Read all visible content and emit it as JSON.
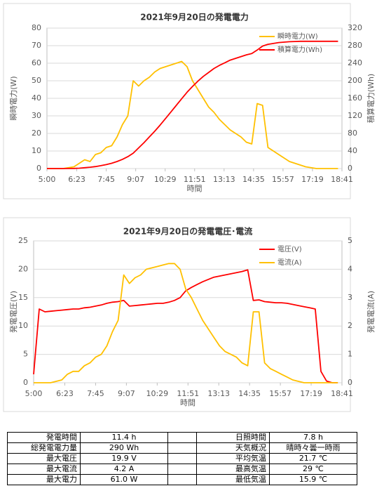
{
  "chart_data": [
    {
      "type": "line",
      "title": "2021年9月20日の発電電力",
      "xlabel": "時間",
      "ylabel": "瞬時電力(W)",
      "y2label": "積算電力(Wh)",
      "legend": "top-right",
      "grid": true,
      "x": [
        300,
        315,
        330,
        345,
        360,
        375,
        390,
        405,
        420,
        435,
        450,
        465,
        480,
        495,
        510,
        525,
        540,
        555,
        570,
        585,
        600,
        615,
        630,
        645,
        660,
        675,
        690,
        705,
        720,
        735,
        750,
        765,
        780,
        795,
        810,
        825,
        840,
        855,
        870,
        885,
        900,
        915,
        930,
        945,
        960,
        975,
        990,
        1005,
        1020,
        1035,
        1050,
        1065,
        1080,
        1095,
        1110
      ],
      "xlim": [
        300,
        1121
      ],
      "xticks": [
        {
          "value": 300,
          "label": "5:00"
        },
        {
          "value": 383,
          "label": "6:23"
        },
        {
          "value": 465,
          "label": "7:45"
        },
        {
          "value": 547,
          "label": "9:07"
        },
        {
          "value": 629,
          "label": "10:29"
        },
        {
          "value": 711,
          "label": "11:51"
        },
        {
          "value": 793,
          "label": "13:13"
        },
        {
          "value": 875,
          "label": "14:35"
        },
        {
          "value": 957,
          "label": "15:57"
        },
        {
          "value": 1039,
          "label": "17:19"
        },
        {
          "value": 1121,
          "label": "18:41"
        }
      ],
      "ylim": [
        0,
        80
      ],
      "yticks": [
        0,
        10,
        20,
        30,
        40,
        50,
        60,
        70,
        80
      ],
      "y2lim": [
        0,
        320
      ],
      "y2ticks": [
        0,
        40,
        80,
        120,
        160,
        200,
        240,
        280,
        320
      ],
      "series": [
        {
          "name": "瞬時電力(W)",
          "color": "#ffc000",
          "values": [
            0,
            0,
            0,
            0,
            0.5,
            1,
            3,
            5,
            4,
            8,
            9,
            12,
            13,
            18,
            25,
            30,
            50,
            47,
            50,
            52,
            55,
            57,
            58,
            59,
            60,
            61,
            58,
            50,
            45,
            40,
            35,
            32,
            28,
            25,
            22,
            20,
            18,
            15,
            14,
            37,
            36,
            12,
            10,
            8,
            6,
            4,
            3,
            2,
            1,
            0.5,
            0,
            0,
            0,
            0,
            0
          ]
        },
        {
          "name": "積算電力(Wh)",
          "color": "#ff0000",
          "axis": "y2",
          "values": [
            0,
            0,
            0,
            0,
            0.1,
            0.3,
            0.8,
            2,
            3,
            4.5,
            6.5,
            9,
            12,
            16,
            21,
            27,
            35,
            47,
            59,
            72,
            85,
            99,
            114,
            129,
            144,
            159,
            174,
            187,
            199,
            210,
            219,
            228,
            235,
            241,
            247,
            251,
            255,
            259,
            262,
            270,
            279,
            283,
            285,
            287,
            288,
            289,
            289.5,
            290,
            290,
            290,
            290,
            290,
            290,
            290,
            290
          ]
        }
      ]
    },
    {
      "type": "line",
      "title": "2021年9月20日の発電電圧･電流",
      "xlabel": "時間",
      "ylabel": "発電電圧(V)",
      "y2label": "発電電流(A)",
      "legend": "top-right",
      "grid": true,
      "x": [
        300,
        315,
        330,
        345,
        360,
        375,
        390,
        405,
        420,
        435,
        450,
        465,
        480,
        495,
        510,
        525,
        540,
        555,
        570,
        585,
        600,
        615,
        630,
        645,
        660,
        675,
        690,
        705,
        720,
        735,
        750,
        765,
        780,
        795,
        810,
        825,
        840,
        855,
        870,
        885,
        900,
        915,
        930,
        945,
        960,
        975,
        990,
        1005,
        1020,
        1035,
        1050,
        1065,
        1080,
        1095,
        1110
      ],
      "xlim": [
        300,
        1121
      ],
      "xticks": [
        {
          "value": 300,
          "label": "5:00"
        },
        {
          "value": 383,
          "label": "6:23"
        },
        {
          "value": 465,
          "label": "7:45"
        },
        {
          "value": 547,
          "label": "9:07"
        },
        {
          "value": 629,
          "label": "10:29"
        },
        {
          "value": 711,
          "label": "11:51"
        },
        {
          "value": 793,
          "label": "13:13"
        },
        {
          "value": 875,
          "label": "14:35"
        },
        {
          "value": 957,
          "label": "15:57"
        },
        {
          "value": 1039,
          "label": "17:19"
        },
        {
          "value": 1121,
          "label": "18:41"
        }
      ],
      "ylim": [
        0,
        25
      ],
      "yticks": [
        0,
        5,
        10,
        15,
        20,
        25
      ],
      "y2lim": [
        0,
        5
      ],
      "y2ticks": [
        0,
        1,
        2,
        3,
        4,
        5
      ],
      "series": [
        {
          "name": "電圧(V)",
          "color": "#ff0000",
          "values": [
            1.5,
            13,
            12.5,
            12.6,
            12.7,
            12.8,
            12.9,
            13,
            13,
            13.2,
            13.3,
            13.5,
            13.7,
            14,
            14.2,
            14.3,
            14.5,
            13.5,
            13.6,
            13.7,
            13.8,
            13.9,
            14,
            14,
            14.2,
            14.5,
            15,
            16.2,
            16.8,
            17.3,
            17.8,
            18.2,
            18.6,
            18.8,
            19,
            19.2,
            19.4,
            19.6,
            19.9,
            14.5,
            14.6,
            14.3,
            14.2,
            14.1,
            14.1,
            14,
            13.8,
            13.6,
            13.4,
            13.2,
            13,
            2,
            0.3,
            0,
            0
          ]
        },
        {
          "name": "電流(A)",
          "color": "#ffc000",
          "axis": "y2",
          "values": [
            0,
            0,
            0,
            0,
            0.05,
            0.1,
            0.3,
            0.4,
            0.4,
            0.6,
            0.7,
            0.9,
            1,
            1.3,
            1.8,
            2.2,
            3.8,
            3.5,
            3.7,
            3.8,
            4,
            4.05,
            4.1,
            4.15,
            4.2,
            4.2,
            4,
            3.3,
            3,
            2.6,
            2.2,
            1.9,
            1.6,
            1.3,
            1.1,
            1,
            0.9,
            0.7,
            0.6,
            2.5,
            2.5,
            0.7,
            0.5,
            0.4,
            0.3,
            0.2,
            0.1,
            0.05,
            0,
            0,
            0,
            0,
            0,
            0,
            0
          ]
        }
      ]
    }
  ],
  "table": {
    "rows": [
      [
        "発電時間",
        "11.4 h",
        "日照時間",
        "7.8 h"
      ],
      [
        "総発電電力量",
        "290 Wh",
        "天気概況",
        "晴時々曇一時雨"
      ],
      [
        "最大電圧",
        "19.9 V",
        "平均気温",
        "21.7 ℃"
      ],
      [
        "最大電流",
        "4.2 A",
        "最高気温",
        "29 ℃"
      ],
      [
        "最大電力",
        "61.0 W",
        "最低気温",
        "15.9 ℃"
      ]
    ]
  }
}
